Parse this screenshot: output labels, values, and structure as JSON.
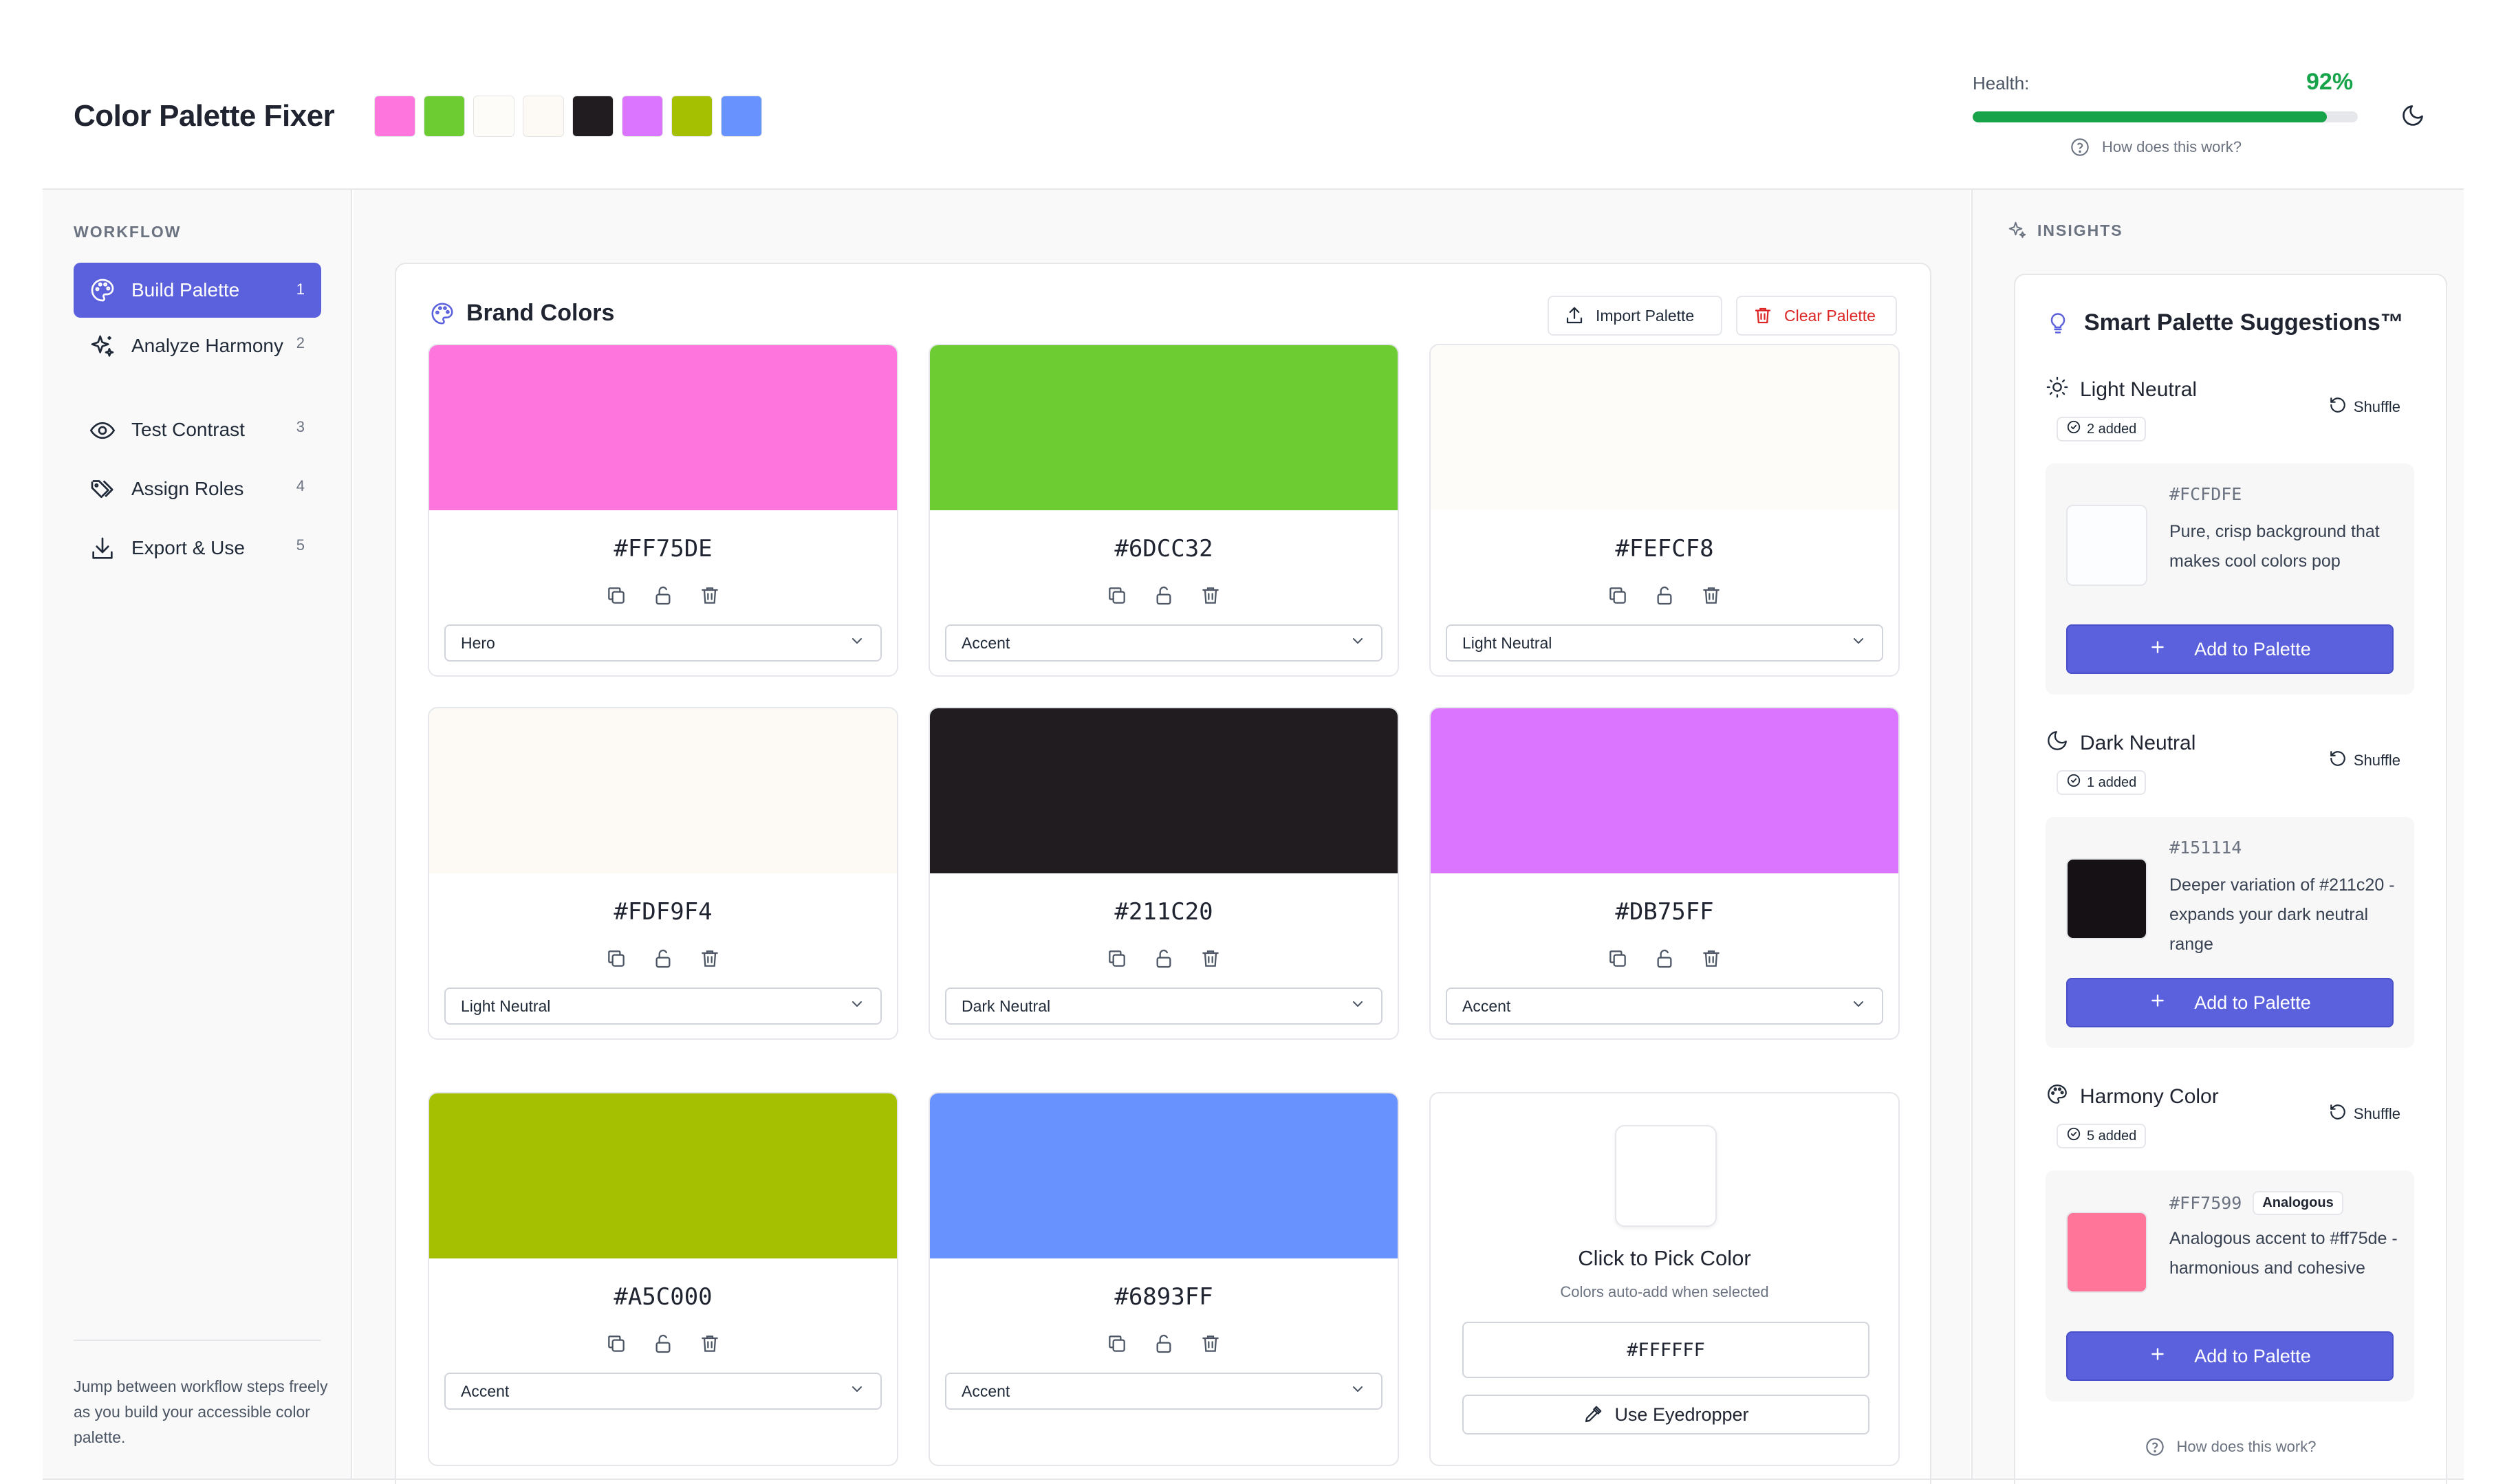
{
  "header": {
    "title": "Color Palette Fixer",
    "swatches": [
      "#FF75DE",
      "#6DCC32",
      "#FEFCF8",
      "#FDF9F4",
      "#211C20",
      "#DB75FF",
      "#A5C000",
      "#6893FF"
    ],
    "health": {
      "label": "Health:",
      "value_text": "92%",
      "value": 0.92
    },
    "how_link": "How does this work?"
  },
  "sidebar": {
    "section": "WORKFLOW",
    "items": [
      {
        "label": "Build Palette",
        "num": "1",
        "icon": "palette-icon",
        "active": true
      },
      {
        "label": "Analyze Harmony",
        "num": "2",
        "icon": "sparkles-icon",
        "active": false
      },
      {
        "label": "Test Contrast",
        "num": "3",
        "icon": "eye-icon",
        "active": false
      },
      {
        "label": "Assign Roles",
        "num": "4",
        "icon": "tags-icon",
        "active": false
      },
      {
        "label": "Export & Use",
        "num": "5",
        "icon": "download-icon",
        "active": false
      }
    ],
    "help": "Jump between workflow steps freely as you build your accessible color palette."
  },
  "main": {
    "title": "Brand Colors",
    "import_label": "Import Palette",
    "clear_label": "Clear Palette",
    "colors": [
      {
        "hex": "#FF75DE",
        "role": "Hero"
      },
      {
        "hex": "#6DCC32",
        "role": "Accent"
      },
      {
        "hex": "#FEFCF8",
        "role": "Light Neutral"
      },
      {
        "hex": "#FDF9F4",
        "role": "Light Neutral"
      },
      {
        "hex": "#211C20",
        "role": "Dark Neutral"
      },
      {
        "hex": "#DB75FF",
        "role": "Accent"
      },
      {
        "hex": "#A5C000",
        "role": "Accent"
      },
      {
        "hex": "#6893FF",
        "role": "Accent"
      }
    ],
    "picker": {
      "title": "Click to Pick Color",
      "subtitle": "Colors auto-add when selected",
      "value": "#FFFFFF",
      "eyedropper_label": "Use Eyedropper"
    }
  },
  "insights": {
    "section": "INSIGHTS",
    "title": "Smart Palette Suggestions™",
    "shuffle_label": "Shuffle",
    "add_label": "Add to Palette",
    "groups": [
      {
        "name": "Light Neutral",
        "icon": "sun-icon",
        "added": "2 added",
        "hex": "#FCFDFE",
        "tag": "",
        "desc": "Pure, crisp background that makes cool colors pop",
        "color": "#FCFDFE"
      },
      {
        "name": "Dark Neutral",
        "icon": "moon-icon",
        "added": "1 added",
        "hex": "#151114",
        "tag": "",
        "desc": "Deeper variation of #211c20 - expands your dark neutral range",
        "color": "#151114"
      },
      {
        "name": "Harmony Color",
        "icon": "palette-icon",
        "added": "5 added",
        "hex": "#FF7599",
        "tag": "Analogous",
        "desc": "Analogous accent to #ff75de - harmonious and cohesive",
        "color": "#FF7599"
      }
    ],
    "how_link": "How does this work?"
  }
}
